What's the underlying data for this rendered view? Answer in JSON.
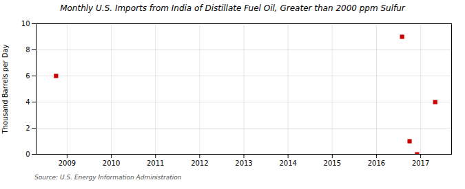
{
  "chart_data": {
    "type": "scatter",
    "title": "Monthly U.S. Imports from India of Distillate Fuel Oil, Greater than 2000 ppm Sulfur",
    "ylabel": "Thousand Barrels per Day",
    "source": "Source: U.S. Energy Information Administration",
    "x": [
      2008.75,
      2016.58,
      2016.75,
      2016.92,
      2017.33
    ],
    "values": [
      6,
      9,
      1,
      0,
      4
    ],
    "color": "#cc0000",
    "marker": "square",
    "xlim": [
      2008.3,
      2017.7
    ],
    "xticks": [
      2009,
      2010,
      2011,
      2012,
      2013,
      2014,
      2015,
      2016,
      2017
    ],
    "ylim": [
      0,
      10
    ],
    "yticks": [
      0,
      2,
      4,
      6,
      8,
      10
    ],
    "grid": true
  }
}
